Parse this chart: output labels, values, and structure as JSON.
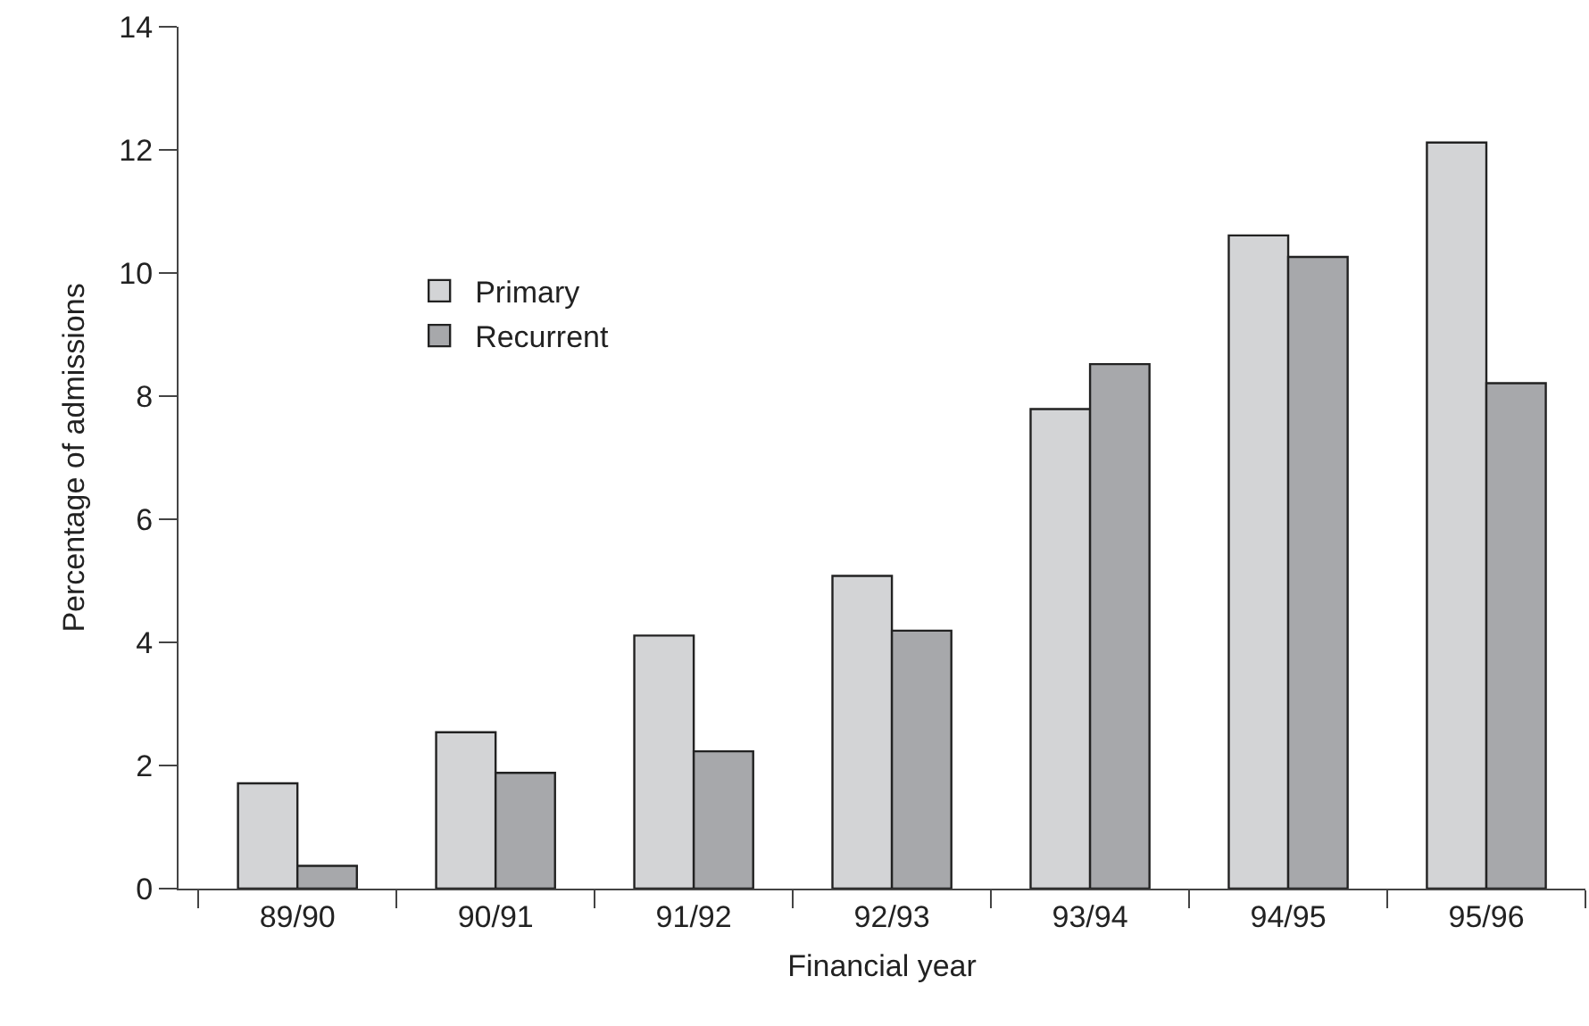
{
  "chart_data": {
    "type": "bar",
    "xlabel": "Financial year",
    "ylabel": "Percentage of admissions",
    "categories": [
      "89/90",
      "90/91",
      "91/92",
      "92/93",
      "93/94",
      "94/95",
      "95/96"
    ],
    "series": [
      {
        "name": "Primary",
        "color": "#d3d4d6",
        "values": [
          1.71,
          2.54,
          4.11,
          5.08,
          7.79,
          10.61,
          12.12
        ]
      },
      {
        "name": "Recurrent",
        "color": "#a7a8ab",
        "values": [
          0.37,
          1.88,
          2.23,
          4.19,
          8.52,
          10.26,
          8.21
        ]
      }
    ],
    "ylim": [
      0,
      14
    ],
    "yticks": [
      0,
      2,
      4,
      6,
      8,
      10,
      12,
      14
    ],
    "grid": false,
    "legend": "top left"
  }
}
